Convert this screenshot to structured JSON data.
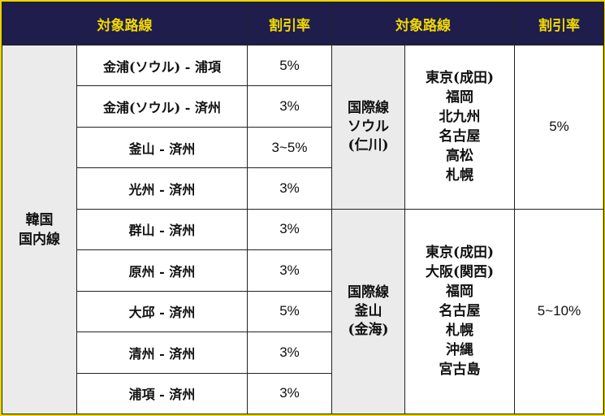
{
  "header": {
    "route_label": "対象路線",
    "rate_label": "割引率"
  },
  "domestic": {
    "region": [
      "韓国",
      "国内線"
    ],
    "rows": [
      {
        "route": "金浦(ソウル) - 浦項",
        "rate": "5%"
      },
      {
        "route": "金浦(ソウル) - 済州",
        "rate": "3%"
      },
      {
        "route": "釜山 - 済州",
        "rate": "3~5%"
      },
      {
        "route": "光州 - 済州",
        "rate": "3%"
      },
      {
        "route": "群山 - 済州",
        "rate": "3%"
      },
      {
        "route": "原州 - 済州",
        "rate": "3%"
      },
      {
        "route": "大邱 - 済州",
        "rate": "5%"
      },
      {
        "route": "清州 - 済州",
        "rate": "3%"
      },
      {
        "route": "浦項 - 済州",
        "rate": "3%"
      }
    ]
  },
  "international": [
    {
      "name": [
        "国際線",
        "ソウル",
        "(仁川)"
      ],
      "destinations": [
        "東京(成田)",
        "福岡",
        "北九州",
        "名古屋",
        "高松",
        "札幌"
      ],
      "rate": "5%"
    },
    {
      "name": [
        "国際線",
        "釜山",
        "(金海)"
      ],
      "destinations": [
        "東京(成田)",
        "大阪(関西)",
        "福岡",
        "名古屋",
        "札幌",
        "沖縄",
        "宮古島"
      ],
      "rate": "5~10%"
    }
  ],
  "colors": {
    "header_bg": "#1f1d4c",
    "header_text": "#f1d900",
    "frame": "#ecd400",
    "region_bg": "#ebebeb"
  }
}
